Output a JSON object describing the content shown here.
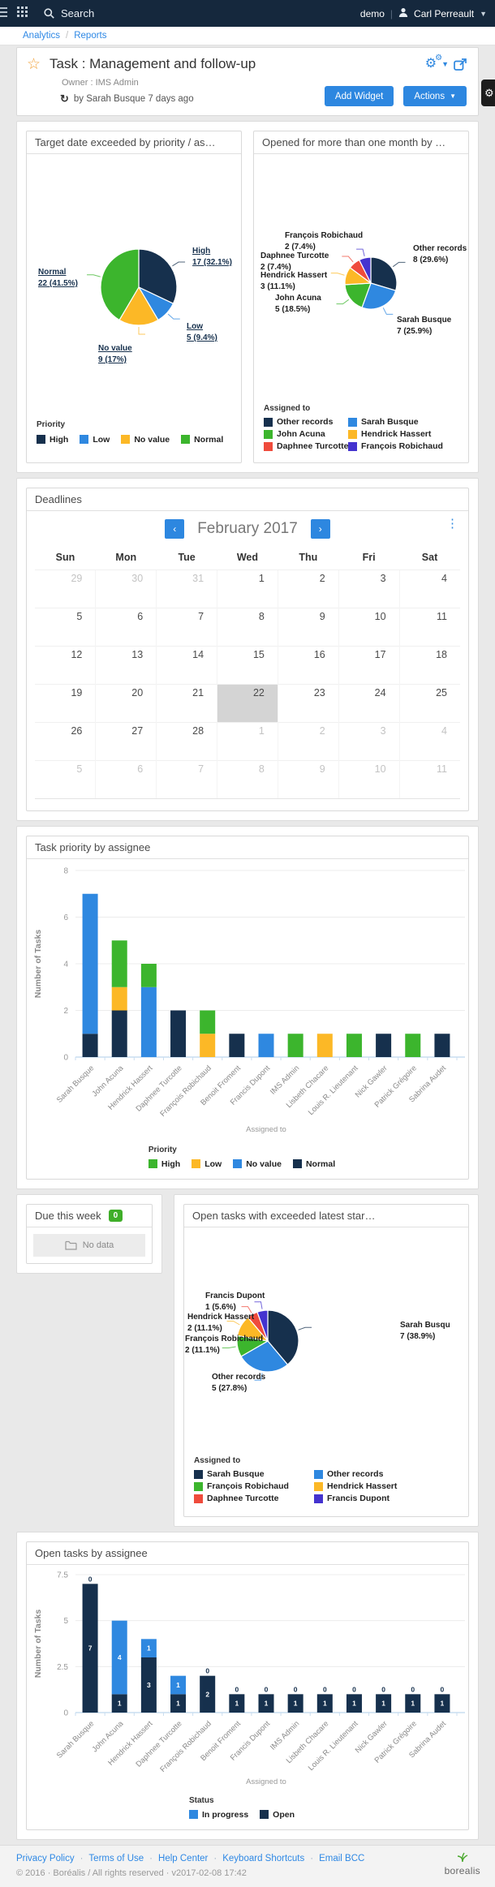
{
  "colors": {
    "navy": "#16304d",
    "blue": "#2f88e0",
    "green": "#3cb52d",
    "yellow": "#fcb826",
    "red": "#ef4b3c",
    "purple": "#4433cf"
  },
  "navbar": {
    "search": "Search",
    "env": "demo",
    "divider": "|",
    "user": "Carl Perreault"
  },
  "breadcrumb": {
    "items": [
      "Analytics",
      "Reports"
    ],
    "separator": "/"
  },
  "header": {
    "title": "Task : Management and follow-up",
    "owner": "Owner : IMS Admin",
    "updated": "by Sarah Busque 7 days ago",
    "add_widget": "Add Widget",
    "actions": "Actions"
  },
  "widgets": {
    "pie1": {
      "title": "Target date exceeded by priority / as…",
      "legend_title": "Priority",
      "chart_data": {
        "type": "pie",
        "total": 53,
        "slices": [
          {
            "label": "High",
            "value": 17,
            "pct": "32.1%",
            "color": "navy"
          },
          {
            "label": "Low",
            "value": 5,
            "pct": "9.4%",
            "color": "blue"
          },
          {
            "label": "No value",
            "value": 9,
            "pct": "17%",
            "color": "yellow"
          },
          {
            "label": "Normal",
            "value": 22,
            "pct": "41.5%",
            "color": "green"
          }
        ]
      },
      "callouts": [
        {
          "name": "High",
          "value": "17 (32.1%)"
        },
        {
          "name": "Normal",
          "value": "22 (41.5%)"
        },
        {
          "name": "Low",
          "value": "5 (9.4%)"
        },
        {
          "name": "No value",
          "value": "9 (17%)"
        }
      ],
      "legend": [
        {
          "label": "High",
          "color": "navy"
        },
        {
          "label": "Low",
          "color": "blue"
        },
        {
          "label": "No value",
          "color": "yellow"
        },
        {
          "label": "Normal",
          "color": "green"
        }
      ]
    },
    "pie2": {
      "title": "Opened for more than one month by …",
      "legend_title": "Assigned to",
      "chart_data": {
        "type": "pie",
        "total": 27,
        "slices": [
          {
            "label": "Other records",
            "value": 8,
            "pct": "29.6%",
            "color": "navy"
          },
          {
            "label": "Sarah Busque",
            "value": 7,
            "pct": "25.9%",
            "color": "blue"
          },
          {
            "label": "John Acuna",
            "value": 5,
            "pct": "18.5%",
            "color": "green"
          },
          {
            "label": "Hendrick Hassert",
            "value": 3,
            "pct": "11.1%",
            "color": "yellow"
          },
          {
            "label": "Daphnee Turcotte",
            "value": 2,
            "pct": "7.4%",
            "color": "red"
          },
          {
            "label": "François Robichaud",
            "value": 2,
            "pct": "7.4%",
            "color": "purple"
          }
        ]
      },
      "callouts": [
        {
          "name": "François Robichaud",
          "value": "2 (7.4%)"
        },
        {
          "name": "Daphnee Turcotte",
          "value": "2 (7.4%)"
        },
        {
          "name": "Hendrick Hassert",
          "value": "3 (11.1%)"
        },
        {
          "name": "John Acuna",
          "value": "5 (18.5%)"
        },
        {
          "name": "Other records",
          "value": "8 (29.6%)"
        },
        {
          "name": "Sarah Busque",
          "value": "7 (25.9%)"
        }
      ],
      "legend": [
        {
          "label": "Other records",
          "color": "navy"
        },
        {
          "label": "Sarah Busque",
          "color": "blue"
        },
        {
          "label": "John Acuna",
          "color": "green"
        },
        {
          "label": "Hendrick Hassert",
          "color": "yellow"
        },
        {
          "label": "Daphnee Turcotte",
          "color": "red"
        },
        {
          "label": "François Robichaud",
          "color": "purple"
        }
      ]
    },
    "deadlines": {
      "title": "Deadlines",
      "month_label": "February 2017",
      "prev": "‹",
      "next": "›",
      "kebab": "⋮",
      "dow": [
        "Sun",
        "Mon",
        "Tue",
        "Wed",
        "Thu",
        "Fri",
        "Sat"
      ],
      "weeks": [
        [
          {
            "d": 29,
            "o": 1
          },
          {
            "d": 30,
            "o": 1
          },
          {
            "d": 31,
            "o": 1
          },
          {
            "d": 1
          },
          {
            "d": 2
          },
          {
            "d": 3
          },
          {
            "d": 4
          }
        ],
        [
          {
            "d": 5
          },
          {
            "d": 6
          },
          {
            "d": 7
          },
          {
            "d": 8
          },
          {
            "d": 9
          },
          {
            "d": 10
          },
          {
            "d": 11
          }
        ],
        [
          {
            "d": 12
          },
          {
            "d": 13
          },
          {
            "d": 14
          },
          {
            "d": 15
          },
          {
            "d": 16
          },
          {
            "d": 17
          },
          {
            "d": 18
          }
        ],
        [
          {
            "d": 19
          },
          {
            "d": 20
          },
          {
            "d": 21
          },
          {
            "d": 22,
            "s": 1
          },
          {
            "d": 23
          },
          {
            "d": 24
          },
          {
            "d": 25
          }
        ],
        [
          {
            "d": 26
          },
          {
            "d": 27
          },
          {
            "d": 28
          },
          {
            "d": 1,
            "o": 1
          },
          {
            "d": 2,
            "o": 1
          },
          {
            "d": 3,
            "o": 1
          },
          {
            "d": 4,
            "o": 1
          }
        ],
        [
          {
            "d": 5,
            "o": 1
          },
          {
            "d": 6,
            "o": 1
          },
          {
            "d": 7,
            "o": 1
          },
          {
            "d": 8,
            "o": 1
          },
          {
            "d": 9,
            "o": 1
          },
          {
            "d": 10,
            "o": 1
          },
          {
            "d": 11,
            "o": 1
          }
        ]
      ]
    },
    "chart1": {
      "title": "Task priority by assignee",
      "legend_title": "Priority",
      "chart_data": {
        "type": "bar",
        "stacked": true,
        "ylabel": "Number of Tasks",
        "xlabel": "Assigned to",
        "ylim": [
          0,
          8
        ],
        "yticks": [
          0,
          2,
          4,
          6,
          8
        ],
        "categories": [
          "Sarah Busque",
          "John Acuna",
          "Hendrick Hassert",
          "Daphnee Turcotte",
          "François Robichaud",
          "Benoit Froment",
          "Francis Dupont",
          "IMS Admin",
          "Lisbeth Chacare",
          "Louis R. Lieutenant",
          "Nick Gawler",
          "Patrick Grégoire",
          "Sabrina Audet"
        ],
        "series": [
          {
            "name": "Normal",
            "color": "navy",
            "values": [
              1,
              2,
              0,
              2,
              0,
              1,
              0,
              0,
              0,
              0,
              1,
              0,
              1
            ]
          },
          {
            "name": "No value",
            "color": "blue",
            "values": [
              6,
              0,
              3,
              0,
              0,
              0,
              1,
              0,
              0,
              0,
              0,
              0,
              0
            ]
          },
          {
            "name": "Low",
            "color": "yellow",
            "values": [
              0,
              1,
              0,
              0,
              1,
              0,
              0,
              0,
              1,
              0,
              0,
              0,
              0
            ]
          },
          {
            "name": "High",
            "color": "green",
            "values": [
              0,
              2,
              1,
              0,
              1,
              0,
              0,
              1,
              0,
              1,
              0,
              1,
              0
            ]
          }
        ],
        "show_value_labels": false
      },
      "legend": [
        {
          "label": "High",
          "color": "green"
        },
        {
          "label": "Low",
          "color": "yellow"
        },
        {
          "label": "No value",
          "color": "blue"
        },
        {
          "label": "Normal",
          "color": "navy"
        }
      ]
    },
    "due": {
      "title": "Due this week",
      "badge": "0",
      "empty": "No data"
    },
    "pie3": {
      "title": "Open tasks with exceeded latest star…",
      "legend_title": "Assigned to",
      "chart_data": {
        "type": "pie",
        "total": 18,
        "slices": [
          {
            "label": "Sarah Busque",
            "value": 7,
            "pct": "38.9%",
            "color": "navy"
          },
          {
            "label": "Other records",
            "value": 5,
            "pct": "27.8%",
            "color": "blue"
          },
          {
            "label": "François Robichaud",
            "value": 2,
            "pct": "11.1%",
            "color": "green"
          },
          {
            "label": "Hendrick Hassert",
            "value": 2,
            "pct": "11.1%",
            "color": "yellow"
          },
          {
            "label": "Daphnee Turcotte",
            "value": 1,
            "pct": "5.6%",
            "color": "red"
          },
          {
            "label": "Francis Dupont",
            "value": 1,
            "pct": "5.6%",
            "color": "purple"
          }
        ]
      },
      "callouts": [
        {
          "name": "Francis Dupont",
          "value": "1 (5.6%)"
        },
        {
          "name": "Hendrick Hassert",
          "value": "2 (11.1%)"
        },
        {
          "name": "François Robichaud",
          "value": "2 (11.1%)"
        },
        {
          "name": "Other records",
          "value": "5 (27.8%)"
        },
        {
          "name": "Sarah Busqu",
          "value": "7 (38.9%)"
        }
      ],
      "legend": [
        {
          "label": "Sarah Busque",
          "color": "navy"
        },
        {
          "label": "Other records",
          "color": "blue"
        },
        {
          "label": "François Robichaud",
          "color": "green"
        },
        {
          "label": "Hendrick Hassert",
          "color": "yellow"
        },
        {
          "label": "Daphnee Turcotte",
          "color": "red"
        },
        {
          "label": "Francis Dupont",
          "color": "purple"
        }
      ]
    },
    "chart2": {
      "title": "Open tasks by assignee",
      "legend_title": "Status",
      "chart_data": {
        "type": "bar",
        "stacked": true,
        "ylabel": "Number of Tasks",
        "xlabel": "Assigned to",
        "ylim": [
          0,
          7.5
        ],
        "yticks": [
          0,
          2.5,
          5,
          7.5
        ],
        "categories": [
          "Sarah Busque",
          "John Acuna",
          "Hendrick Hassert",
          "Daphnee Turcotte",
          "François Robichaud",
          "Benoit Froment",
          "Francis Dupont",
          "IMS Admin",
          "Lisbeth Chacare",
          "Louis R. Lieutenant",
          "Nick Gawler",
          "Patrick Grégoire",
          "Sabrina Audet"
        ],
        "series": [
          {
            "name": "Open",
            "color": "navy",
            "values": [
              7,
              1,
              3,
              1,
              2,
              1,
              1,
              1,
              1,
              1,
              1,
              1,
              1
            ]
          },
          {
            "name": "In progress",
            "color": "blue",
            "values": [
              0,
              4,
              1,
              1,
              0,
              0,
              0,
              0,
              0,
              0,
              0,
              0,
              0
            ]
          }
        ],
        "show_value_labels": true
      },
      "legend": [
        {
          "label": "In progress",
          "color": "blue"
        },
        {
          "label": "Open",
          "color": "navy"
        }
      ]
    }
  },
  "footer": {
    "links": [
      "Privacy Policy",
      "Terms of Use",
      "Help Center",
      "Keyboard Shortcuts",
      "Email BCC"
    ],
    "copyright": "© 2016 · Boréalis / All rights reserved · v2017-02-08 17:42",
    "brand": "borealis"
  }
}
